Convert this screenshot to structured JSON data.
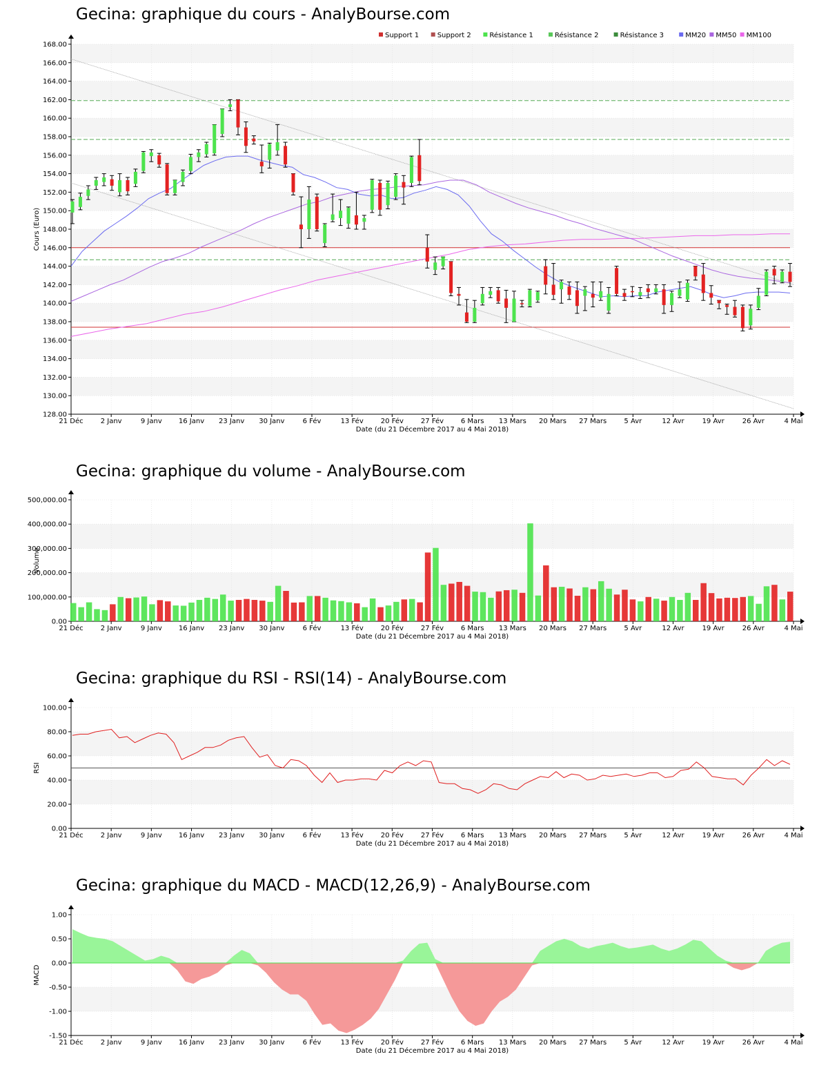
{
  "x_tick_labels": [
    "21 Déc",
    "2 Janv",
    "9 Janv",
    "16 Janv",
    "23 Janv",
    "30 Janv",
    "6 Fév",
    "13 Fév",
    "20 Fév",
    "27 Fév",
    "6 Mars",
    "13 Mars",
    "20 Mars",
    "27 Mars",
    "5 Avr",
    "12 Avr",
    "19 Avr",
    "26 Avr",
    "4 Mai"
  ],
  "x_axis_label": "Date (du 21 Décembre 2017 au 4 Mai 2018)",
  "colors": {
    "up": "#4de34d",
    "down": "#e32222",
    "macd_pos": "#99f599",
    "macd_neg": "#f59999",
    "mm20": "#6b6bf0",
    "mm50": "#aa66e0",
    "mm100": "#ea66ea",
    "support": "#d03030",
    "resistance": "#55aa55",
    "rsi": "#e02020"
  },
  "chart_data": [
    {
      "type": "candlestick",
      "title": "Gecina: graphique du cours - AnalyBourse.com",
      "ylabel": "Cours (Euro)",
      "xlabel": "Date (du 21 Décembre 2017 au 4 Mai 2018)",
      "ylim": [
        128,
        168
      ],
      "y_ticks": [
        "128.00",
        "130.00",
        "132.00",
        "134.00",
        "136.00",
        "138.00",
        "140.00",
        "142.00",
        "144.00",
        "146.00",
        "148.00",
        "150.00",
        "152.00",
        "154.00",
        "156.00",
        "158.00",
        "160.00",
        "162.00",
        "164.00",
        "166.00",
        "168.00"
      ],
      "legend": [
        "Support 1",
        "Support 2",
        "Résistance 1",
        "Résistance 2",
        "Résistance 3",
        "MM20",
        "MM50",
        "MM100"
      ],
      "legend_position": "top-right",
      "levels": {
        "support_1": 137.4,
        "support_2": 146.0,
        "resistance_1": 144.7,
        "resistance_2": 157.7,
        "resistance_3": 161.9
      },
      "trend_channel": {
        "upper": [
          166.4,
          142.0
        ],
        "lower": [
          153.0,
          128.6
        ]
      },
      "candles": [
        [
          149.8,
          151.0,
          148.6,
          151.2
        ],
        [
          150.4,
          151.5,
          150.1,
          151.9
        ],
        [
          151.6,
          152.3,
          151.2,
          152.7
        ],
        [
          152.7,
          153.3,
          152.3,
          153.6
        ],
        [
          153.1,
          153.6,
          152.7,
          154.0
        ],
        [
          153.4,
          152.7,
          152.2,
          153.8
        ],
        [
          152.0,
          153.3,
          151.6,
          154.0
        ],
        [
          153.3,
          152.1,
          151.7,
          153.6
        ],
        [
          152.9,
          154.2,
          152.6,
          154.5
        ],
        [
          154.3,
          156.3,
          154.1,
          156.4
        ],
        [
          155.9,
          156.3,
          155.3,
          156.6
        ],
        [
          156.0,
          155.0,
          154.7,
          156.2
        ],
        [
          155.0,
          151.9,
          151.7,
          155.1
        ],
        [
          151.9,
          153.3,
          151.7,
          153.3
        ],
        [
          153.1,
          154.2,
          152.7,
          154.4
        ],
        [
          154.3,
          155.8,
          154.0,
          156.1
        ],
        [
          155.8,
          156.3,
          155.3,
          156.6
        ],
        [
          156.1,
          157.2,
          155.8,
          157.4
        ],
        [
          156.2,
          159.3,
          156.0,
          159.3
        ],
        [
          158.3,
          161.0,
          158.0,
          161.0
        ],
        [
          161.2,
          161.5,
          160.8,
          162.0
        ],
        [
          162.0,
          159.0,
          158.2,
          162.0
        ],
        [
          159.0,
          157.0,
          156.3,
          159.6
        ],
        [
          157.8,
          157.5,
          157.2,
          158.1
        ],
        [
          155.3,
          154.8,
          154.1,
          157.1
        ],
        [
          155.5,
          157.2,
          154.6,
          157.3
        ],
        [
          156.5,
          157.4,
          156.0,
          159.3
        ],
        [
          157.0,
          155.0,
          154.7,
          157.4
        ],
        [
          154.0,
          152.0,
          151.7,
          154.0
        ],
        [
          148.5,
          148.0,
          146.0,
          151.5
        ],
        [
          148.0,
          151.2,
          147.0,
          152.6
        ],
        [
          151.5,
          148.0,
          147.8,
          151.8
        ],
        [
          146.5,
          148.5,
          146.1,
          148.6
        ],
        [
          149.0,
          149.6,
          148.8,
          151.8
        ],
        [
          149.2,
          150.0,
          148.4,
          151.2
        ],
        [
          148.6,
          150.3,
          148.1,
          150.4
        ],
        [
          149.5,
          148.5,
          148.0,
          152.0
        ],
        [
          148.8,
          149.2,
          148.0,
          149.5
        ],
        [
          150.1,
          153.3,
          149.8,
          153.4
        ],
        [
          153.0,
          150.1,
          149.5,
          153.3
        ],
        [
          150.6,
          153.0,
          150.2,
          153.2
        ],
        [
          151.5,
          153.8,
          151.2,
          154.0
        ],
        [
          153.1,
          152.5,
          150.7,
          153.8
        ],
        [
          153.0,
          155.8,
          152.6,
          155.9
        ],
        [
          156.0,
          153.2,
          152.8,
          157.7
        ],
        [
          146.0,
          144.5,
          143.8,
          147.4
        ],
        [
          143.6,
          144.4,
          143.1,
          145.0
        ],
        [
          144.0,
          145.0,
          143.7,
          145.0
        ],
        [
          144.5,
          141.1,
          140.8,
          144.5
        ],
        [
          141.0,
          140.8,
          139.8,
          141.7
        ],
        [
          139.0,
          138.0,
          137.9,
          140.4
        ],
        [
          138.0,
          139.5,
          137.9,
          140.3
        ],
        [
          140.0,
          141.0,
          139.8,
          141.7
        ],
        [
          140.9,
          141.3,
          140.6,
          141.7
        ],
        [
          141.4,
          140.2,
          140.0,
          141.7
        ],
        [
          140.5,
          139.5,
          137.9,
          141.4
        ],
        [
          138.0,
          140.5,
          138.0,
          141.3
        ],
        [
          140.0,
          139.9,
          139.6,
          140.3
        ],
        [
          139.7,
          141.4,
          139.6,
          141.5
        ],
        [
          140.3,
          141.2,
          140.1,
          141.3
        ],
        [
          144.0,
          142.0,
          141.0,
          144.7
        ],
        [
          142.0,
          140.9,
          140.4,
          144.3
        ],
        [
          141.5,
          142.3,
          140.0,
          142.5
        ],
        [
          141.8,
          140.9,
          140.4,
          142.3
        ],
        [
          141.4,
          139.7,
          138.9,
          142.3
        ],
        [
          140.8,
          141.5,
          139.2,
          141.8
        ],
        [
          141.0,
          140.6,
          139.6,
          142.3
        ],
        [
          140.6,
          141.3,
          140.3,
          142.3
        ],
        [
          139.2,
          141.0,
          138.9,
          141.7
        ],
        [
          143.8,
          141.0,
          140.8,
          144.0
        ],
        [
          141.1,
          140.7,
          140.3,
          141.5
        ],
        [
          141.3,
          141.2,
          140.7,
          141.8
        ],
        [
          140.8,
          141.2,
          140.5,
          141.7
        ],
        [
          141.6,
          141.2,
          140.6,
          142.0
        ],
        [
          141.2,
          141.6,
          141.0,
          142.0
        ],
        [
          141.5,
          139.8,
          138.9,
          142.0
        ],
        [
          139.8,
          141.1,
          139.1,
          141.3
        ],
        [
          140.8,
          141.5,
          140.6,
          142.3
        ],
        [
          140.4,
          142.2,
          140.2,
          142.5
        ],
        [
          144.0,
          142.9,
          142.5,
          144.0
        ],
        [
          143.1,
          141.1,
          140.3,
          144.3
        ],
        [
          141.1,
          140.6,
          139.9,
          141.9
        ],
        [
          140.3,
          140.0,
          139.4,
          140.3
        ],
        [
          139.8,
          139.6,
          138.8,
          139.9
        ],
        [
          139.6,
          138.7,
          138.5,
          140.3
        ],
        [
          139.6,
          137.3,
          137.0,
          139.8
        ],
        [
          137.6,
          139.4,
          137.2,
          139.8
        ],
        [
          139.5,
          140.8,
          139.3,
          141.6
        ],
        [
          140.9,
          143.4,
          140.8,
          143.6
        ],
        [
          143.7,
          143.0,
          142.1,
          144.0
        ],
        [
          142.3,
          143.4,
          142.2,
          143.6
        ],
        [
          143.4,
          142.3,
          141.8,
          144.3
        ]
      ],
      "mm20": [
        144.0,
        145.6,
        146.7,
        147.8,
        148.6,
        149.4,
        150.3,
        151.3,
        151.9,
        152.4,
        153.3,
        154.1,
        154.9,
        155.4,
        155.8,
        155.9,
        155.9,
        155.5,
        155.2,
        154.9,
        154.7,
        153.9,
        153.6,
        153.1,
        152.5,
        152.3,
        151.8,
        151.6,
        151.7,
        151.3,
        151.4,
        151.9,
        152.2,
        152.6,
        152.3,
        151.7,
        150.5,
        148.9,
        147.5,
        146.7,
        145.7,
        144.8,
        143.9,
        143.1,
        142.4,
        141.9,
        141.5,
        141.1,
        140.7,
        140.8,
        140.7,
        140.8,
        140.8,
        141.2,
        141.4,
        141.6,
        141.8,
        141.4,
        140.9,
        140.6,
        140.8,
        141.1,
        141.2,
        141.2,
        141.2,
        141.1
      ],
      "mm50": [
        140.2,
        140.8,
        141.4,
        142.0,
        142.5,
        143.2,
        143.9,
        144.5,
        144.9,
        145.4,
        146.1,
        146.7,
        147.3,
        147.9,
        148.6,
        149.2,
        149.7,
        150.2,
        150.7,
        151.0,
        151.5,
        151.8,
        152.1,
        152.3,
        152.4,
        152.6,
        152.7,
        152.8,
        153.1,
        153.3,
        153.3,
        152.8,
        152.0,
        151.4,
        150.8,
        150.3,
        149.9,
        149.5,
        149.0,
        148.6,
        148.1,
        147.7,
        147.3,
        146.9,
        146.3,
        145.7,
        145.1,
        144.6,
        144.1,
        143.6,
        143.2,
        142.9,
        142.7,
        142.6,
        142.4,
        142.2
      ],
      "mm100": [
        136.4,
        136.8,
        137.2,
        137.5,
        137.8,
        138.3,
        138.8,
        139.1,
        139.6,
        140.2,
        140.8,
        141.4,
        141.9,
        142.5,
        142.9,
        143.3,
        143.7,
        144.1,
        144.5,
        144.9,
        145.3,
        145.8,
        146.1,
        146.3,
        146.4,
        146.6,
        146.8,
        146.9,
        146.9,
        147.0,
        147.0,
        147.1,
        147.2,
        147.3,
        147.3,
        147.4,
        147.4,
        147.5,
        147.5
      ]
    },
    {
      "type": "bar",
      "title": "Gecina: graphique du volume - AnalyBourse.com",
      "ylabel": "Volume",
      "xlabel": "Date (du 21 Décembre 2017 au 4 Mai 2018)",
      "ylim": [
        0,
        500000
      ],
      "y_ticks": [
        "0.00",
        "100,000.00",
        "200,000.00",
        "300,000.00",
        "400,000.00",
        "500,000.00"
      ],
      "values": [
        75000,
        58000,
        78000,
        50000,
        46000,
        70000,
        100000,
        95000,
        98000,
        102000,
        70000,
        87000,
        82000,
        65000,
        64000,
        77000,
        88000,
        97000,
        92000,
        110000,
        85000,
        88000,
        92000,
        88000,
        85000,
        80000,
        146000,
        125000,
        77000,
        78000,
        104000,
        104000,
        97000,
        86000,
        83000,
        78000,
        74000,
        58000,
        94000,
        58000,
        65000,
        80000,
        90000,
        92000,
        78000,
        283000,
        302000,
        150000,
        155000,
        162000,
        146000,
        122000,
        120000,
        97000,
        123000,
        128000,
        130000,
        117000,
        403000,
        106000,
        230000,
        140000,
        142000,
        135000,
        105000,
        140000,
        132000,
        165000,
        134000,
        110000,
        130000,
        90000,
        82000,
        100000,
        93000,
        85000,
        100000,
        88000,
        117000,
        88000,
        157000,
        116000,
        94000,
        97000,
        96000,
        100000,
        104000,
        72000,
        144000,
        150000,
        90000,
        122000
      ]
    },
    {
      "type": "line",
      "title": "Gecina: graphique du RSI - RSI(14) - AnalyBourse.com",
      "ylabel": "RSI",
      "xlabel": "Date (du 21 Décembre 2017 au 4 Mai 2018)",
      "ylim": [
        0,
        100
      ],
      "y_ticks": [
        "0.00",
        "20.00",
        "40.00",
        "60.00",
        "80.00",
        "100.00"
      ],
      "reference_line": 50,
      "values": [
        77,
        78,
        78,
        80,
        81,
        82,
        75,
        76,
        71,
        74,
        77,
        79,
        78,
        71,
        57,
        60,
        63,
        67,
        67,
        69,
        73,
        75,
        76,
        67,
        59,
        61,
        52,
        50,
        57,
        56,
        52,
        44,
        38,
        46,
        38,
        40,
        40,
        41,
        41,
        40,
        48,
        46,
        52,
        55,
        52,
        56,
        55,
        38,
        37,
        37,
        33,
        32,
        29,
        32,
        37,
        36,
        33,
        32,
        37,
        40,
        43,
        42,
        47,
        42,
        45,
        44,
        40,
        41,
        44,
        43,
        44,
        45,
        43,
        44,
        46,
        46,
        42,
        43,
        48,
        49,
        55,
        50,
        43,
        42,
        41,
        41,
        36,
        44,
        50,
        57,
        52,
        56,
        53
      ]
    },
    {
      "type": "area",
      "title": "Gecina: graphique du MACD - MACD(12,26,9) - AnalyBourse.com",
      "ylabel": "MACD",
      "xlabel": "Date (du 21 Décembre 2017 au 4 Mai 2018)",
      "ylim": [
        -1.5,
        1.0
      ],
      "y_ticks": [
        "-1.50",
        "-1.00",
        "-0.50",
        "0.00",
        "0.50",
        "1.00"
      ],
      "values": [
        0.7,
        0.62,
        0.55,
        0.52,
        0.5,
        0.45,
        0.35,
        0.25,
        0.15,
        0.05,
        0.08,
        0.15,
        0.1,
        -0.15,
        -0.38,
        -0.43,
        -0.33,
        -0.28,
        -0.2,
        -0.05,
        0.15,
        0.27,
        0.2,
        -0.05,
        -0.2,
        -0.4,
        -0.55,
        -0.65,
        -0.65,
        -0.78,
        -1.05,
        -1.28,
        -1.25,
        -1.4,
        -1.45,
        -1.38,
        -1.28,
        -1.15,
        -0.95,
        -0.65,
        -0.35,
        0.05,
        0.25,
        0.4,
        0.42,
        0.08,
        -0.35,
        -0.7,
        -1.0,
        -1.2,
        -1.3,
        -1.25,
        -1.0,
        -0.8,
        -0.7,
        -0.55,
        -0.3,
        -0.05,
        0.25,
        0.35,
        0.45,
        0.5,
        0.45,
        0.35,
        0.3,
        0.35,
        0.38,
        0.42,
        0.35,
        0.3,
        0.32,
        0.35,
        0.38,
        0.3,
        0.25,
        0.3,
        0.38,
        0.48,
        0.45,
        0.3,
        0.15,
        0.05,
        -0.1,
        -0.15,
        -0.1,
        0.0,
        0.25,
        0.35,
        0.42,
        0.44
      ]
    }
  ]
}
